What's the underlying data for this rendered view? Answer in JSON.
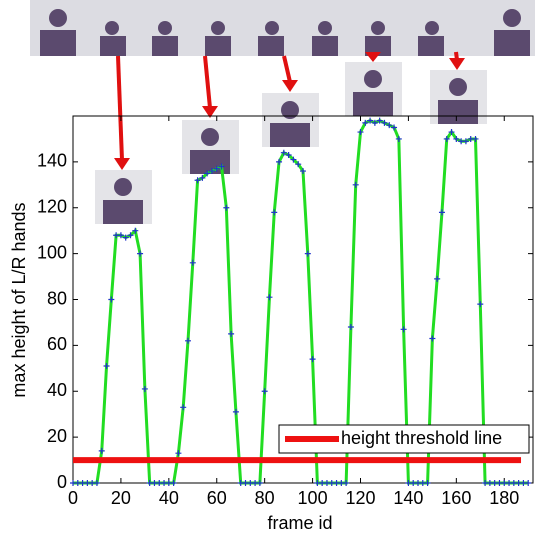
{
  "chart_data": {
    "type": "line",
    "xlabel": "frame id",
    "ylabel": "max height of L/R hands",
    "xlim": [
      0,
      192
    ],
    "ylim": [
      0,
      160
    ],
    "xticks": [
      0,
      20,
      40,
      60,
      80,
      100,
      120,
      140,
      160,
      180
    ],
    "yticks": [
      0,
      20,
      40,
      60,
      80,
      100,
      120,
      140
    ],
    "legend": "lower right",
    "series": [
      {
        "color": "#22dd22",
        "marker_color": "#2233cc",
        "x": [
          0,
          2,
          4,
          6,
          8,
          10,
          12,
          14,
          16,
          18,
          20,
          22,
          24,
          26,
          28,
          30,
          32,
          34,
          36,
          38,
          40,
          42,
          44,
          46,
          48,
          50,
          52,
          54,
          56,
          58,
          60,
          62,
          64,
          66,
          68,
          70,
          72,
          74,
          76,
          78,
          80,
          82,
          84,
          86,
          88,
          90,
          92,
          94,
          96,
          98,
          100,
          102,
          104,
          106,
          108,
          110,
          112,
          114,
          116,
          118,
          120,
          122,
          124,
          126,
          128,
          130,
          132,
          134,
          136,
          138,
          140,
          142,
          144,
          146,
          148,
          150,
          152,
          154,
          156,
          158,
          160,
          162,
          164,
          166,
          168,
          170,
          172,
          174,
          176,
          178,
          180,
          182,
          184,
          186,
          188,
          190
        ],
        "values": [
          0,
          0,
          0,
          0,
          0,
          0,
          14,
          51,
          80,
          108,
          108,
          107,
          108,
          110,
          100,
          41,
          0,
          0,
          0,
          0,
          0,
          0,
          13,
          33,
          62,
          96,
          132,
          133,
          135,
          136,
          137,
          138,
          120,
          65,
          31,
          0,
          0,
          0,
          0,
          0,
          40,
          81,
          118,
          140,
          144,
          143,
          141,
          139,
          136,
          100,
          54,
          0,
          0,
          0,
          0,
          0,
          0,
          0,
          68,
          130,
          153,
          157,
          158,
          157,
          158,
          157,
          156,
          155,
          150,
          67,
          0,
          0,
          0,
          0,
          0,
          63,
          89,
          118,
          150,
          153,
          150,
          149,
          149,
          150,
          150,
          78,
          0,
          0,
          0,
          0,
          0,
          0,
          0,
          0,
          0,
          0
        ]
      },
      {
        "name": "height threshold line",
        "color": "#ee1111",
        "x": [
          0,
          187
        ],
        "values": [
          10,
          10
        ]
      }
    ]
  }
}
